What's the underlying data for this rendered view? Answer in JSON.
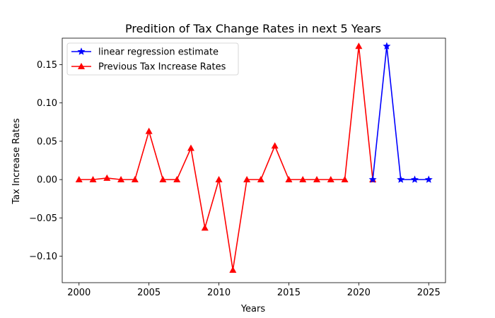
{
  "chart_data": {
    "type": "line",
    "title": "Predition of Tax Change Rates in next 5 Years",
    "xlabel": "Years",
    "ylabel": "Tax Increase Rates",
    "xlim": [
      1998.8,
      2026.2
    ],
    "ylim": [
      -0.1345,
      0.1845
    ],
    "xticks": [
      2000,
      2005,
      2010,
      2015,
      2020,
      2025
    ],
    "xtick_labels": [
      "2000",
      "2005",
      "2010",
      "2015",
      "2020",
      "2025"
    ],
    "yticks": [
      -0.1,
      -0.05,
      0.0,
      0.05,
      0.1,
      0.15
    ],
    "ytick_labels": [
      "−0.10",
      "−0.05",
      "0.00",
      "0.05",
      "0.10",
      "0.15"
    ],
    "grid": false,
    "legend_position": "top-left",
    "series": [
      {
        "name": "linear regression estimate",
        "color": "#0000ff",
        "marker": "star",
        "x": [
          2021,
          2022,
          2023,
          2024,
          2025
        ],
        "y": [
          0.0,
          0.174,
          0.0,
          0.0,
          0.0
        ]
      },
      {
        "name": "Previous Tax Increase Rates",
        "color": "#ff0000",
        "marker": "triangle",
        "x": [
          2000,
          2001,
          2002,
          2003,
          2004,
          2005,
          2006,
          2007,
          2008,
          2009,
          2010,
          2011,
          2012,
          2013,
          2014,
          2015,
          2016,
          2017,
          2018,
          2019,
          2020,
          2021
        ],
        "y": [
          0.0,
          0.0,
          0.002,
          0.0,
          0.0,
          0.063,
          0.0,
          0.0,
          0.041,
          -0.063,
          0.0,
          -0.118,
          0.0,
          0.0,
          0.044,
          0.0,
          0.0,
          0.0,
          0.0,
          0.0,
          0.174,
          0.0
        ]
      }
    ]
  }
}
